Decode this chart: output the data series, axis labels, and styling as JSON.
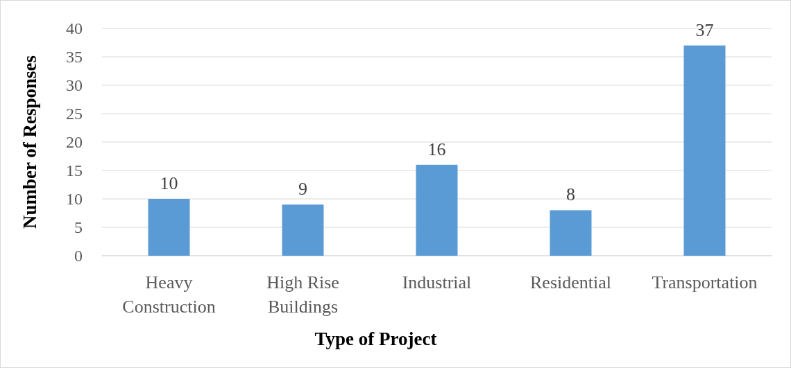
{
  "chart_data": {
    "type": "bar",
    "xlabel": "Type of Project",
    "ylabel": "Number of Responses",
    "categories": [
      "Heavy Construction",
      "High Rise Buildings",
      "Industrial",
      "Residential",
      "Transportation"
    ],
    "values": [
      10,
      9,
      16,
      8,
      37
    ],
    "color": "#5b9bd5",
    "ylim": [
      0,
      40
    ],
    "yticks": [
      0,
      5,
      10,
      15,
      20,
      25,
      30,
      35,
      40
    ],
    "grid": "y",
    "data_labels": true
  }
}
